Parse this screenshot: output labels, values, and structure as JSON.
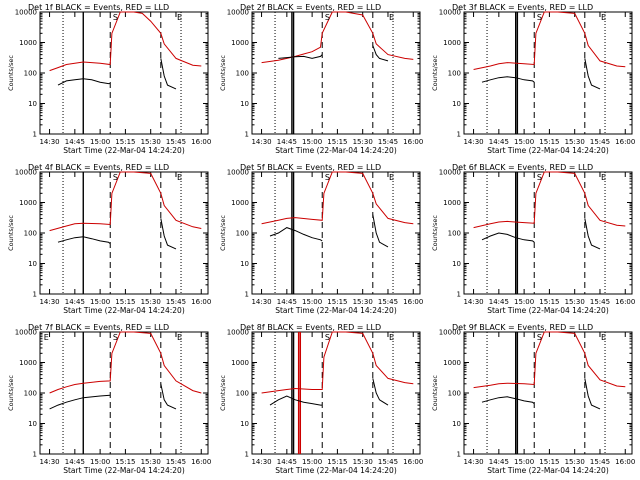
{
  "chart_data": [
    {
      "type": "line",
      "title": "Det 1f BLACK = Events, RED = LLD",
      "xlabel": "Start Time (22-Mar-04 14:24:20)",
      "ylabel": "Counts/sec",
      "x_ticks": [
        "14:30",
        "14:45",
        "15:00",
        "15:15",
        "15:30",
        "15:45",
        "16:00"
      ],
      "y_ticks": [
        "1",
        "10",
        "100",
        "1000",
        "10000"
      ],
      "yscale": "log",
      "ylim": [
        1,
        10000
      ],
      "markers": [
        "S",
        "E"
      ],
      "solid_lines": [
        "14:50"
      ],
      "series": [
        {
          "color": "#cc0000",
          "x": [
            "14:30",
            "14:35",
            "14:40",
            "14:45",
            "14:50",
            "15:00",
            "15:06",
            "15:07",
            "15:12",
            "15:20",
            "15:25",
            "15:30",
            "15:36",
            "15:38",
            "15:45",
            "15:55",
            "16:00"
          ],
          "y": [
            120,
            150,
            190,
            210,
            230,
            210,
            190,
            2000,
            10000,
            10000,
            9000,
            5000,
            2000,
            900,
            300,
            180,
            170
          ]
        },
        {
          "color": "#000000",
          "x": [
            "14:35",
            "14:40",
            "14:45",
            "14:50",
            "14:55",
            "15:00",
            "15:05",
            "15:06"
          ],
          "y": [
            40,
            55,
            60,
            65,
            60,
            50,
            45,
            45
          ]
        },
        {
          "color": "#000000",
          "x": [
            "15:36",
            "15:38",
            "15:40",
            "15:45"
          ],
          "y": [
            300,
            80,
            40,
            30
          ]
        }
      ]
    },
    {
      "type": "line",
      "title": "Det 2f BLACK = Events, RED = LLD",
      "xlabel": "Start Time (22-Mar-04 14:24:20)",
      "ylabel": "Counts/sec",
      "x_ticks": [
        "14:30",
        "14:45",
        "15:00",
        "15:15",
        "15:30",
        "15:45",
        "16:00"
      ],
      "y_ticks": [
        "1",
        "10",
        "100",
        "1000",
        "10000"
      ],
      "yscale": "log",
      "ylim": [
        1,
        10000
      ],
      "markers": [
        "S",
        "E"
      ],
      "solid_lines": [
        "14:48",
        "14:49"
      ],
      "series": [
        {
          "color": "#cc0000",
          "x": [
            "14:30",
            "14:40",
            "14:45",
            "14:50",
            "14:55",
            "15:00",
            "15:05",
            "15:06",
            "15:12",
            "15:20",
            "15:30",
            "15:36",
            "15:38",
            "15:45",
            "15:55",
            "16:00"
          ],
          "y": [
            220,
            260,
            300,
            350,
            420,
            500,
            700,
            2000,
            10000,
            10000,
            8000,
            2000,
            900,
            400,
            300,
            280
          ]
        },
        {
          "color": "#000000",
          "x": [
            "14:40",
            "14:45",
            "14:50",
            "14:55",
            "15:00",
            "15:05",
            "15:06"
          ],
          "y": [
            300,
            320,
            340,
            350,
            300,
            350,
            400
          ]
        },
        {
          "color": "#000000",
          "x": [
            "15:36",
            "15:38",
            "15:40",
            "15:45"
          ],
          "y": [
            800,
            400,
            300,
            250
          ]
        }
      ]
    },
    {
      "type": "line",
      "title": "Det 3f BLACK = Events, RED = LLD",
      "xlabel": "Start Time (22-Mar-04 14:24:20)",
      "ylabel": "Counts/sec",
      "x_ticks": [
        "14:30",
        "14:45",
        "15:00",
        "15:15",
        "15:30",
        "15:45",
        "16:00"
      ],
      "y_ticks": [
        "1",
        "10",
        "100",
        "1000",
        "10000"
      ],
      "yscale": "log",
      "ylim": [
        1,
        10000
      ],
      "markers": [
        "S",
        "E"
      ],
      "solid_lines": [
        "14:55",
        "14:56"
      ],
      "series": [
        {
          "color": "#cc0000",
          "x": [
            "14:30",
            "14:40",
            "14:45",
            "14:50",
            "15:00",
            "15:06",
            "15:07",
            "15:12",
            "15:20",
            "15:30",
            "15:36",
            "15:38",
            "15:45",
            "15:55",
            "16:00"
          ],
          "y": [
            130,
            170,
            200,
            220,
            200,
            190,
            2000,
            10000,
            10000,
            9000,
            2000,
            800,
            250,
            170,
            160
          ]
        },
        {
          "color": "#000000",
          "x": [
            "14:35",
            "14:40",
            "14:45",
            "14:50",
            "14:55",
            "15:00",
            "15:05",
            "15:06"
          ],
          "y": [
            50,
            60,
            70,
            75,
            70,
            60,
            55,
            50
          ]
        },
        {
          "color": "#000000",
          "x": [
            "15:36",
            "15:38",
            "15:40",
            "15:45"
          ],
          "y": [
            300,
            80,
            40,
            30
          ]
        }
      ]
    },
    {
      "type": "line",
      "title": "Det 4f BLACK = Events, RED = LLD",
      "xlabel": "Start Time (22-Mar-04 14:24:20)",
      "ylabel": "Counts/sec",
      "x_ticks": [
        "14:30",
        "14:45",
        "15:00",
        "15:15",
        "15:30",
        "15:45",
        "16:00"
      ],
      "y_ticks": [
        "1",
        "10",
        "100",
        "1000",
        "10000"
      ],
      "yscale": "log",
      "ylim": [
        1,
        10000
      ],
      "markers": [
        "S",
        "E"
      ],
      "solid_lines": [
        "14:50"
      ],
      "series": [
        {
          "color": "#cc0000",
          "x": [
            "14:30",
            "14:40",
            "14:45",
            "14:50",
            "15:00",
            "15:06",
            "15:07",
            "15:12",
            "15:20",
            "15:30",
            "15:36",
            "15:38",
            "15:45",
            "15:55",
            "16:00"
          ],
          "y": [
            120,
            170,
            200,
            210,
            200,
            190,
            2000,
            10000,
            10000,
            9000,
            2000,
            800,
            260,
            160,
            140
          ]
        },
        {
          "color": "#000000",
          "x": [
            "14:35",
            "14:40",
            "14:45",
            "14:50",
            "14:55",
            "15:00",
            "15:05",
            "15:06"
          ],
          "y": [
            50,
            60,
            70,
            75,
            65,
            55,
            50,
            45
          ]
        },
        {
          "color": "#000000",
          "x": [
            "15:36",
            "15:38",
            "15:40",
            "15:45"
          ],
          "y": [
            300,
            80,
            40,
            30
          ]
        }
      ]
    },
    {
      "type": "line",
      "title": "Det 5f BLACK = Events, RED = LLD",
      "xlabel": "Start Time (22-Mar-04 14:24:20)",
      "ylabel": "Counts/sec",
      "x_ticks": [
        "14:30",
        "14:45",
        "15:00",
        "15:15",
        "15:30",
        "15:45",
        "16:00"
      ],
      "y_ticks": [
        "1",
        "10",
        "100",
        "1000",
        "10000"
      ],
      "yscale": "log",
      "ylim": [
        1,
        10000
      ],
      "markers": [
        "S",
        "E"
      ],
      "solid_lines": [
        "14:48",
        "14:49"
      ],
      "series": [
        {
          "color": "#cc0000",
          "x": [
            "14:30",
            "14:40",
            "14:45",
            "14:50",
            "15:00",
            "15:06",
            "15:07",
            "15:12",
            "15:20",
            "15:30",
            "15:36",
            "15:38",
            "15:45",
            "15:55",
            "16:00"
          ],
          "y": [
            200,
            260,
            300,
            320,
            280,
            260,
            2000,
            10000,
            10000,
            9000,
            2000,
            900,
            300,
            220,
            200
          ]
        },
        {
          "color": "#000000",
          "x": [
            "14:35",
            "14:40",
            "14:45",
            "14:50",
            "14:55",
            "15:00",
            "15:05",
            "15:06"
          ],
          "y": [
            80,
            100,
            150,
            120,
            90,
            70,
            60,
            55
          ]
        },
        {
          "color": "#000000",
          "x": [
            "15:36",
            "15:38",
            "15:40",
            "15:45"
          ],
          "y": [
            400,
            100,
            50,
            35
          ]
        }
      ]
    },
    {
      "type": "line",
      "title": "Det 6f BLACK = Events, RED = LLD",
      "xlabel": "Start Time (22-Mar-04 14:24:20)",
      "ylabel": "Counts/sec",
      "x_ticks": [
        "14:30",
        "14:45",
        "15:00",
        "15:15",
        "15:30",
        "15:45",
        "16:00"
      ],
      "y_ticks": [
        "1",
        "10",
        "100",
        "1000",
        "10000"
      ],
      "yscale": "log",
      "ylim": [
        1,
        10000
      ],
      "markers": [
        "S",
        "E"
      ],
      "solid_lines": [
        "14:55",
        "14:56"
      ],
      "series": [
        {
          "color": "#cc0000",
          "x": [
            "14:30",
            "14:40",
            "14:45",
            "14:50",
            "15:00",
            "15:06",
            "15:07",
            "15:12",
            "15:20",
            "15:30",
            "15:36",
            "15:38",
            "15:45",
            "15:55",
            "16:00"
          ],
          "y": [
            150,
            200,
            230,
            240,
            220,
            210,
            2000,
            10000,
            10000,
            9000,
            2000,
            800,
            260,
            180,
            170
          ]
        },
        {
          "color": "#000000",
          "x": [
            "14:35",
            "14:40",
            "14:45",
            "14:50",
            "14:55",
            "15:00",
            "15:05",
            "15:06"
          ],
          "y": [
            60,
            80,
            100,
            90,
            70,
            60,
            55,
            50
          ]
        },
        {
          "color": "#000000",
          "x": [
            "15:36",
            "15:38",
            "15:40",
            "15:45"
          ],
          "y": [
            300,
            80,
            40,
            30
          ]
        }
      ]
    },
    {
      "type": "line",
      "title": "Det 7f BLACK = Events, RED = LLD",
      "xlabel": "Start Time (22-Mar-04 14:24:20)",
      "ylabel": "Counts/sec",
      "x_ticks": [
        "14:30",
        "14:45",
        "15:00",
        "15:15",
        "15:30",
        "15:45",
        "16:00"
      ],
      "y_ticks": [
        "1",
        "10",
        "100",
        "1000",
        "10000"
      ],
      "yscale": "log",
      "ylim": [
        1,
        10000
      ],
      "markers": [
        "E",
        "S",
        "E"
      ],
      "solid_lines": [
        "14:50"
      ],
      "series": [
        {
          "color": "#cc0000",
          "x": [
            "14:30",
            "14:35",
            "14:40",
            "14:45",
            "14:50",
            "15:00",
            "15:06",
            "15:07",
            "15:12",
            "15:20",
            "15:30",
            "15:36",
            "15:38",
            "15:45",
            "15:55",
            "16:00"
          ],
          "y": [
            100,
            130,
            160,
            190,
            210,
            240,
            250,
            2000,
            10000,
            10000,
            9000,
            2000,
            800,
            250,
            120,
            100
          ]
        },
        {
          "color": "#000000",
          "x": [
            "14:30",
            "14:35",
            "14:40",
            "14:45",
            "14:50",
            "15:00",
            "15:06"
          ],
          "y": [
            30,
            40,
            50,
            60,
            70,
            80,
            85
          ]
        },
        {
          "color": "#000000",
          "x": [
            "15:36",
            "15:38",
            "15:40",
            "15:45"
          ],
          "y": [
            200,
            60,
            40,
            30
          ]
        }
      ]
    },
    {
      "type": "line",
      "title": "Det 8f BLACK = Events, RED = LLD",
      "xlabel": "Start Time (22-Mar-04 14:24:20)",
      "ylabel": "Counts/sec",
      "x_ticks": [
        "14:30",
        "14:45",
        "15:00",
        "15:15",
        "15:30",
        "15:45",
        "16:00"
      ],
      "y_ticks": [
        "1",
        "10",
        "100",
        "1000",
        "10000"
      ],
      "yscale": "log",
      "ylim": [
        1,
        10000
      ],
      "markers": [
        "S",
        "E"
      ],
      "solid_lines": [
        "14:48",
        "14:49"
      ],
      "red_vlines": [
        "14:52",
        "14:53"
      ],
      "series": [
        {
          "color": "#cc0000",
          "x": [
            "14:30",
            "14:40",
            "14:45",
            "14:50",
            "15:00",
            "15:06",
            "15:07",
            "15:12",
            "15:20",
            "15:30",
            "15:36",
            "15:38",
            "15:45",
            "15:55",
            "16:00"
          ],
          "y": [
            100,
            120,
            130,
            140,
            130,
            130,
            1500,
            10000,
            10000,
            9000,
            2000,
            800,
            300,
            220,
            200
          ]
        },
        {
          "color": "#000000",
          "x": [
            "14:35",
            "14:40",
            "14:45",
            "14:50",
            "14:55",
            "15:00",
            "15:05",
            "15:06"
          ],
          "y": [
            40,
            60,
            80,
            60,
            50,
            45,
            40,
            40
          ]
        },
        {
          "color": "#000000",
          "x": [
            "15:36",
            "15:38",
            "15:40",
            "15:45"
          ],
          "y": [
            300,
            100,
            60,
            40
          ]
        }
      ]
    },
    {
      "type": "line",
      "title": "Det 9f BLACK = Events, RED = LLD",
      "xlabel": "Start Time (22-Mar-04 14:24:20)",
      "ylabel": "Counts/sec",
      "x_ticks": [
        "14:30",
        "14:45",
        "15:00",
        "15:15",
        "15:30",
        "15:45",
        "16:00"
      ],
      "y_ticks": [
        "1",
        "10",
        "100",
        "1000",
        "10000"
      ],
      "yscale": "log",
      "ylim": [
        1,
        10000
      ],
      "markers": [
        "S",
        "E"
      ],
      "solid_lines": [
        "14:55",
        "14:56"
      ],
      "series": [
        {
          "color": "#cc0000",
          "x": [
            "14:30",
            "14:40",
            "14:45",
            "14:50",
            "15:00",
            "15:06",
            "15:07",
            "15:12",
            "15:20",
            "15:30",
            "15:36",
            "15:38",
            "15:45",
            "15:55",
            "16:00"
          ],
          "y": [
            150,
            180,
            200,
            210,
            200,
            190,
            2000,
            10000,
            10000,
            9000,
            2000,
            800,
            270,
            170,
            160
          ]
        },
        {
          "color": "#000000",
          "x": [
            "14:35",
            "14:40",
            "14:45",
            "14:50",
            "14:55",
            "15:00",
            "15:05",
            "15:06"
          ],
          "y": [
            50,
            60,
            70,
            75,
            65,
            55,
            50,
            45
          ]
        },
        {
          "color": "#000000",
          "x": [
            "15:36",
            "15:38",
            "15:40",
            "15:45"
          ],
          "y": [
            300,
            80,
            40,
            30
          ]
        }
      ]
    }
  ]
}
